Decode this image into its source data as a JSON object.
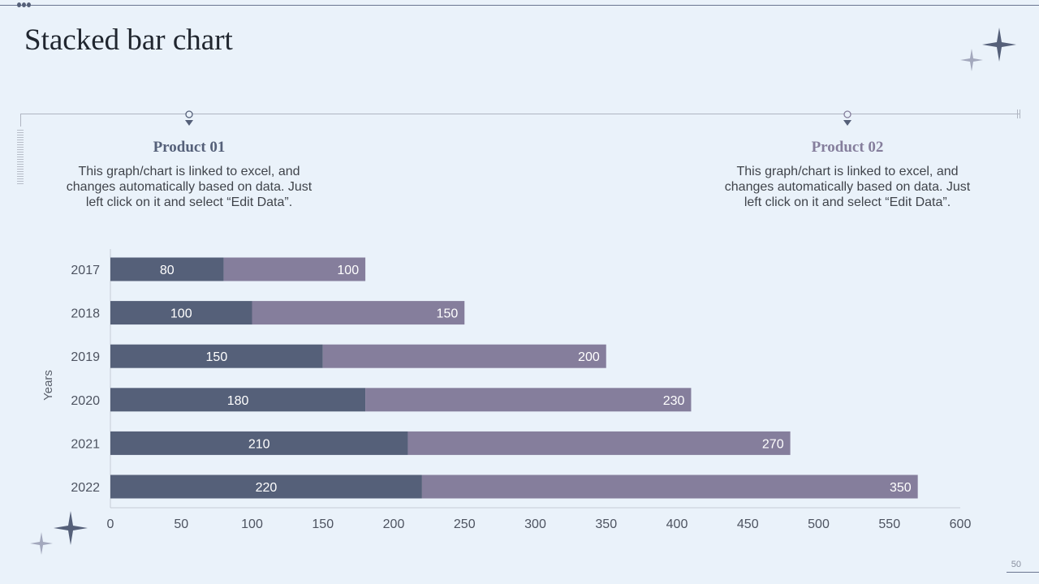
{
  "title": "Stacked bar chart",
  "products": [
    {
      "title": "Product 01",
      "description": "This graph/chart is linked to excel, and changes automatically based on data. Just left click on it and select “Edit Data”.",
      "color": "#556079"
    },
    {
      "title": "Product 02",
      "description": "This graph/chart is linked to excel, and changes automatically based on data. Just left click on it and select “Edit Data”.",
      "color": "#857e9c"
    }
  ],
  "page_number": "50",
  "colors": {
    "background": "#eaf2fa",
    "series1": "#556079",
    "series2": "#857e9c"
  },
  "chart_data": {
    "type": "bar",
    "orientation": "horizontal",
    "stacked": true,
    "categories": [
      "2017",
      "2018",
      "2019",
      "2020",
      "2021",
      "2022"
    ],
    "series": [
      {
        "values": [
          80,
          100,
          150,
          180,
          210,
          220
        ],
        "color": "#556079"
      },
      {
        "values": [
          100,
          150,
          200,
          230,
          270,
          350
        ],
        "color": "#857e9c"
      }
    ],
    "ylabel": "Years",
    "xlim": [
      0,
      600
    ],
    "xticks": [
      0,
      50,
      100,
      150,
      200,
      250,
      300,
      350,
      400,
      450,
      500,
      550,
      600
    ],
    "grid": false,
    "legend": "none"
  }
}
